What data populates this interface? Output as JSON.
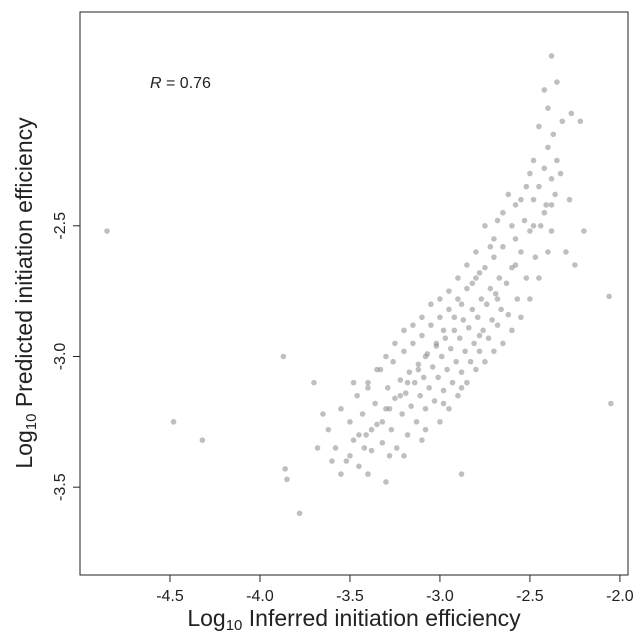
{
  "chart_data": {
    "type": "scatter",
    "xlabel": [
      "Log",
      "10",
      " Inferred initiation efficiency"
    ],
    "ylabel": [
      "Log",
      "10",
      " Predicted initiation efficiency"
    ],
    "annotation": {
      "italic": "R",
      "text": " = 0.76"
    },
    "color": "#8a8a8a",
    "xlim": [
      -5.0,
      -1.955
    ],
    "ylim": [
      -3.836,
      -1.682
    ],
    "xticks": [
      -4.5,
      {
        "value": -4,
        "label": "-4.0"
      },
      -3.5,
      {
        "value": -3,
        "label": "-3.0"
      },
      -2.5,
      {
        "value": -2,
        "label": "-2.0"
      }
    ],
    "yticks": [
      -2.5,
      {
        "value": -3,
        "label": "-3.0"
      },
      -3.5
    ],
    "x": [
      -3.62,
      -3.58,
      -3.55,
      -3.52,
      -3.5,
      -3.48,
      -3.46,
      -3.45,
      -3.43,
      -3.41,
      -3.4,
      -3.38,
      -3.36,
      -3.35,
      -3.33,
      -3.32,
      -3.3,
      -3.29,
      -3.27,
      -3.26,
      -3.25,
      -3.24,
      -3.22,
      -3.21,
      -3.2,
      -3.19,
      -3.18,
      -3.17,
      -3.16,
      -3.15,
      -3.14,
      -3.13,
      -3.12,
      -3.11,
      -3.1,
      -3.09,
      -3.08,
      -3.07,
      -3.06,
      -3.05,
      -3.04,
      -3.03,
      -3.02,
      -3.01,
      -3.0,
      -2.99,
      -2.98,
      -2.97,
      -2.96,
      -2.95,
      -2.94,
      -2.93,
      -2.92,
      -2.91,
      -2.9,
      -2.89,
      -2.88,
      -2.87,
      -2.86,
      -2.85,
      -2.84,
      -2.83,
      -2.82,
      -2.81,
      -2.8,
      -2.79,
      -2.78,
      -2.77,
      -2.76,
      -2.75,
      -2.74,
      -2.73,
      -2.72,
      -2.71,
      -2.7,
      -2.69,
      -2.68,
      -2.67,
      -2.66,
      -2.65,
      -2.63,
      -2.62,
      -2.6,
      -2.58,
      -2.57,
      -2.55,
      -2.53,
      -2.52,
      -2.5,
      -2.48,
      -2.47,
      -2.45,
      -2.44,
      -2.42,
      -2.41,
      -2.4,
      -2.38,
      -2.37,
      -2.36,
      -2.35,
      -2.45,
      -2.5,
      -2.55,
      -2.6,
      -2.65,
      -2.7,
      -2.75,
      -2.8,
      -2.85,
      -2.9,
      -2.95,
      -3.0,
      -3.05,
      -3.1,
      -3.15,
      -3.2,
      -3.25,
      -3.3,
      -3.35,
      -3.4,
      -3.45,
      -3.5,
      -3.55,
      -3.6,
      -3.65,
      -3.7,
      -3.68,
      -3.4,
      -3.2,
      -3.1,
      -3.0,
      -2.95,
      -2.9,
      -2.85,
      -2.8,
      -2.75,
      -2.7,
      -2.65,
      -2.6,
      -2.55,
      -2.5,
      -2.45,
      -2.4,
      -2.42,
      -2.38,
      -2.48,
      -2.52,
      -2.58,
      -2.62,
      -2.68,
      -2.72,
      -2.78,
      -2.82,
      -2.88,
      -2.92,
      -2.98,
      -3.02,
      -3.08,
      -3.12,
      -3.18,
      -3.22,
      -3.28,
      -3.32,
      -3.38,
      -3.42,
      -3.48,
      -3.28,
      -3.08,
      -2.98,
      -2.88,
      -2.78,
      -2.68,
      -2.58,
      -2.48,
      -2.38,
      -2.33,
      -2.3,
      -2.25,
      -2.28,
      -2.22,
      -2.4,
      -2.35,
      -2.42,
      -2.38,
      -4.85,
      -4.48,
      -4.32,
      -3.87,
      -3.86,
      -3.85,
      -3.78,
      -2.05,
      -2.06,
      -2.2,
      -2.27,
      -2.32,
      -2.88,
      -3.3
    ],
    "y": [
      -3.28,
      -3.35,
      -3.2,
      -3.4,
      -3.25,
      -3.32,
      -3.15,
      -3.42,
      -3.22,
      -3.3,
      -3.1,
      -3.36,
      -3.18,
      -3.26,
      -3.05,
      -3.33,
      -3.2,
      -3.12,
      -3.28,
      -3.02,
      -3.16,
      -3.35,
      -3.09,
      -3.22,
      -2.98,
      -3.14,
      -3.3,
      -3.06,
      -3.19,
      -2.95,
      -3.1,
      -3.25,
      -3.03,
      -3.15,
      -2.92,
      -3.08,
      -3.2,
      -2.99,
      -3.12,
      -2.88,
      -3.04,
      -3.17,
      -2.96,
      -3.08,
      -2.85,
      -3.0,
      -3.13,
      -2.93,
      -3.05,
      -2.82,
      -2.97,
      -3.1,
      -2.9,
      -3.02,
      -2.78,
      -2.93,
      -3.06,
      -2.86,
      -2.98,
      -2.74,
      -2.89,
      -3.02,
      -2.82,
      -2.95,
      -2.7,
      -2.85,
      -2.98,
      -2.78,
      -2.9,
      -2.66,
      -2.8,
      -2.93,
      -2.74,
      -2.86,
      -2.62,
      -2.76,
      -2.88,
      -2.7,
      -2.82,
      -2.58,
      -2.72,
      -2.84,
      -2.66,
      -2.55,
      -2.78,
      -2.6,
      -2.48,
      -2.7,
      -2.52,
      -2.4,
      -2.62,
      -2.35,
      -2.5,
      -2.28,
      -2.42,
      -2.2,
      -2.32,
      -2.15,
      -2.38,
      -2.25,
      -2.12,
      -2.3,
      -2.4,
      -2.5,
      -2.45,
      -2.55,
      -2.5,
      -2.6,
      -2.65,
      -2.7,
      -2.75,
      -2.78,
      -2.8,
      -2.85,
      -2.88,
      -2.9,
      -2.95,
      -3.0,
      -3.05,
      -3.12,
      -3.3,
      -3.38,
      -3.45,
      -3.4,
      -3.22,
      -3.1,
      -3.35,
      -3.45,
      -3.38,
      -3.32,
      -3.25,
      -3.2,
      -3.15,
      -3.1,
      -3.05,
      -3.02,
      -2.98,
      -2.95,
      -2.9,
      -2.85,
      -2.78,
      -2.7,
      -2.6,
      -2.45,
      -2.52,
      -2.25,
      -2.35,
      -2.42,
      -2.38,
      -2.48,
      -2.58,
      -2.68,
      -2.72,
      -2.8,
      -2.85,
      -2.9,
      -2.95,
      -3.0,
      -3.05,
      -3.1,
      -3.15,
      -3.2,
      -3.25,
      -3.28,
      -3.35,
      -3.1,
      -3.38,
      -3.28,
      -3.18,
      -3.12,
      -2.92,
      -2.78,
      -2.65,
      -2.5,
      -2.42,
      -2.3,
      -2.6,
      -2.65,
      -2.4,
      -2.1,
      -2.05,
      -1.95,
      -1.98,
      -1.85,
      -2.52,
      -3.25,
      -3.32,
      -3.0,
      -3.43,
      -3.47,
      -3.6,
      -3.18,
      -2.77,
      -2.52,
      -2.07,
      -2.1,
      -3.45,
      -3.48
    ]
  }
}
